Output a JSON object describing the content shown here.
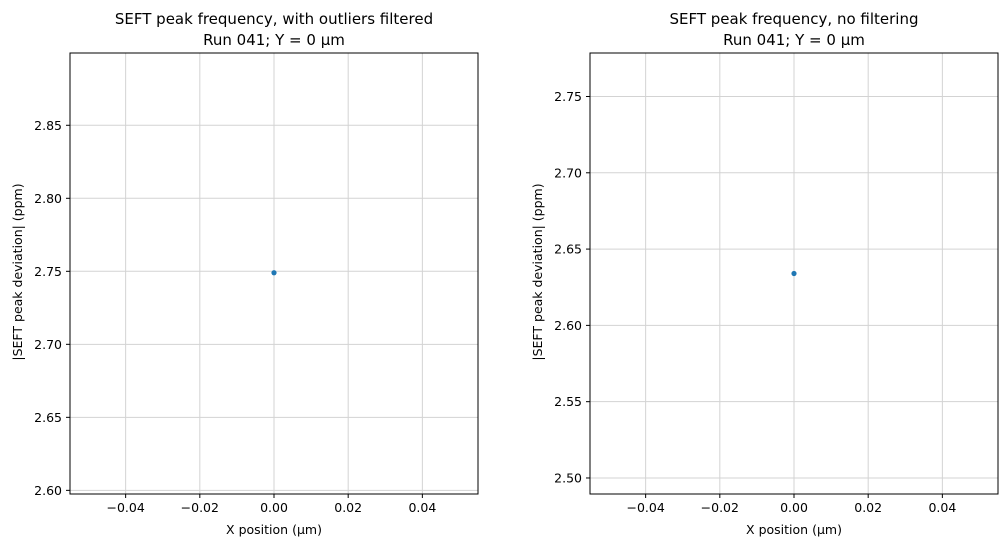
{
  "chart_data": [
    {
      "type": "scatter",
      "title": "SEFT peak frequency, with outliers filtered",
      "subtitle": "Run 041; Y = 0 µm",
      "xlabel": "X position (µm)",
      "ylabel": "|SEFT peak deviation| (ppm)",
      "xlim": [
        -0.055,
        0.055
      ],
      "ylim": [
        2.5975,
        2.8995
      ],
      "xticks": [
        -0.04,
        -0.02,
        0.0,
        0.02,
        0.04
      ],
      "xtick_labels": [
        "−0.04",
        "−0.02",
        "0.00",
        "0.02",
        "0.04"
      ],
      "yticks": [
        2.65,
        2.7,
        2.75,
        2.8,
        2.85
      ],
      "ytick_labels": [
        "2.65",
        "2.70",
        "2.75",
        "2.80",
        "2.85"
      ],
      "grid": true,
      "series": [
        {
          "x": [
            0.0
          ],
          "y": [
            2.749
          ],
          "color": "#1f77b4"
        }
      ],
      "extra_ytick": {
        "value": 2.6,
        "label": "2.60"
      }
    },
    {
      "type": "scatter",
      "title": "SEFT peak frequency, no filtering",
      "subtitle": "Run 041; Y = 0 µm",
      "xlabel": "X position (µm)",
      "ylabel": "|SEFT peak deviation| (ppm)",
      "xlim": [
        -0.055,
        0.055
      ],
      "ylim": [
        2.4895,
        2.7785
      ],
      "xticks": [
        -0.04,
        -0.02,
        0.0,
        0.02,
        0.04
      ],
      "xtick_labels": [
        "−0.04",
        "−0.02",
        "0.00",
        "0.02",
        "0.04"
      ],
      "yticks": [
        2.5,
        2.55,
        2.6,
        2.65,
        2.7,
        2.75
      ],
      "ytick_labels": [
        "2.50",
        "2.55",
        "2.60",
        "2.65",
        "2.70",
        "2.75"
      ],
      "grid": true,
      "series": [
        {
          "x": [
            0.0
          ],
          "y": [
            2.634
          ],
          "color": "#1f77b4"
        }
      ]
    }
  ]
}
